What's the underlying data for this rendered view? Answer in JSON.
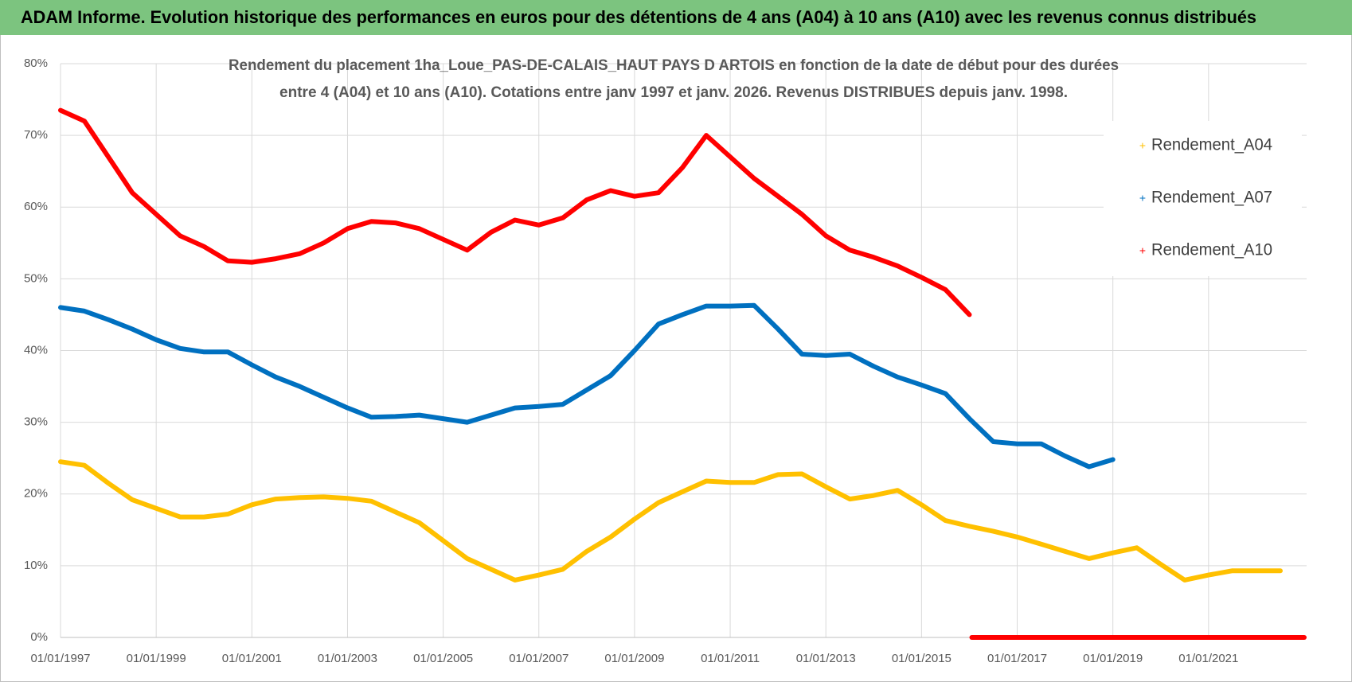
{
  "header": {
    "title": "ADAM Informe. Evolution historique des performances en euros pour des détentions de 4 ans (A04) à 10 ans (A10) avec les revenus connus distribués"
  },
  "chart_data": {
    "type": "line",
    "title": "Rendement du placement 1ha_Loue_PAS-DE-CALAIS_HAUT PAYS D ARTOIS en fonction de la date de début pour des durées",
    "subtitle": "entre 4 (A04) et 10 ans (A10). Cotations entre janv 1997 et janv. 2026. Revenus DISTRIBUES depuis janv. 1998.",
    "xlim": [
      1997,
      2023.05
    ],
    "xticks": [
      {
        "value": 1997,
        "label": "01/01/1997"
      },
      {
        "value": 1999,
        "label": "01/01/1999"
      },
      {
        "value": 2001,
        "label": "01/01/2001"
      },
      {
        "value": 2003,
        "label": "01/01/2003"
      },
      {
        "value": 2005,
        "label": "01/01/2005"
      },
      {
        "value": 2007,
        "label": "01/01/2007"
      },
      {
        "value": 2009,
        "label": "01/01/2009"
      },
      {
        "value": 2011,
        "label": "01/01/2011"
      },
      {
        "value": 2013,
        "label": "01/01/2013"
      },
      {
        "value": 2015,
        "label": "01/01/2015"
      },
      {
        "value": 2017,
        "label": "01/01/2017"
      },
      {
        "value": 2019,
        "label": "01/01/2019"
      },
      {
        "value": 2021,
        "label": "01/01/2021"
      }
    ],
    "ylim": [
      0,
      80
    ],
    "yticks": [
      {
        "value": 0,
        "label": "0%"
      },
      {
        "value": 10,
        "label": "10%"
      },
      {
        "value": 20,
        "label": "20%"
      },
      {
        "value": 30,
        "label": "30%"
      },
      {
        "value": 40,
        "label": "40%"
      },
      {
        "value": 50,
        "label": "50%"
      },
      {
        "value": 60,
        "label": "60%"
      },
      {
        "value": 70,
        "label": "70%"
      },
      {
        "value": 80,
        "label": "80%"
      }
    ],
    "grid": true,
    "legend": "right",
    "series": [
      {
        "name": "Rendement_A04",
        "color": "#ffc000",
        "x": [
          1997,
          1997.5,
          1998,
          1998.5,
          1999,
          1999.5,
          2000,
          2000.5,
          2001,
          2001.5,
          2002,
          2002.5,
          2003,
          2003.5,
          2004,
          2004.5,
          2005,
          2005.5,
          2006,
          2006.5,
          2007,
          2007.5,
          2008,
          2008.5,
          2009,
          2009.5,
          2010,
          2010.5,
          2011,
          2011.5,
          2012,
          2012.5,
          2013,
          2013.5,
          2014,
          2014.5,
          2015,
          2015.5,
          2016,
          2016.5,
          2017,
          2017.5,
          2018,
          2018.5,
          2019,
          2019.5,
          2020,
          2020.5,
          2021,
          2021.5,
          2022,
          2022.5
        ],
        "values": [
          24.5,
          24,
          21.5,
          19.2,
          18,
          16.8,
          16.8,
          17.2,
          18.5,
          19.3,
          19.5,
          19.6,
          19.4,
          19,
          17.5,
          16,
          13.5,
          11,
          9.5,
          8,
          8.7,
          9.5,
          12,
          14,
          16.5,
          18.8,
          20.3,
          21.8,
          21.6,
          21.6,
          22.7,
          22.8,
          21,
          19.3,
          19.8,
          20.5,
          18.5,
          16.3,
          15.5,
          14.8,
          14,
          13,
          12,
          11,
          11.8,
          12.5,
          10.2,
          8,
          8.7,
          9.3,
          9.3,
          9.3
        ]
      },
      {
        "name": "Rendement_A07",
        "color": "#0070c0",
        "x": [
          1997,
          1997.5,
          1998,
          1998.5,
          1999,
          1999.5,
          2000,
          2000.5,
          2001,
          2001.5,
          2002,
          2002.5,
          2003,
          2003.5,
          2004,
          2004.5,
          2005,
          2005.5,
          2006,
          2006.5,
          2007,
          2007.5,
          2008,
          2008.5,
          2009,
          2009.5,
          2010,
          2010.5,
          2011,
          2011.5,
          2012,
          2012.5,
          2013,
          2013.5,
          2014,
          2014.5,
          2015,
          2015.5,
          2016,
          2016.5,
          2017,
          2017.5,
          2018,
          2018.5,
          2019
        ],
        "values": [
          46,
          45.5,
          44.3,
          43,
          41.5,
          40.3,
          39.8,
          39.8,
          38,
          36.3,
          35,
          33.5,
          32,
          30.7,
          30.8,
          31,
          30.5,
          30,
          31,
          32,
          32.2,
          32.5,
          34.5,
          36.5,
          40,
          43.7,
          45,
          46.2,
          46.2,
          46.3,
          43,
          39.5,
          39.3,
          39.5,
          37.8,
          36.3,
          35.2,
          34,
          30.5,
          27.3,
          27,
          27,
          25.3,
          23.8,
          24.8
        ]
      },
      {
        "name": "Rendement_A10",
        "color": "#ff0000",
        "x": [
          1997,
          1997.5,
          1998,
          1998.5,
          1999,
          1999.5,
          2000,
          2000.5,
          2001,
          2001.5,
          2002,
          2002.5,
          2003,
          2003.5,
          2004,
          2004.5,
          2005,
          2005.5,
          2006,
          2006.5,
          2007,
          2007.5,
          2008,
          2008.5,
          2009,
          2009.5,
          2010,
          2010.5,
          2011,
          2011.5,
          2012,
          2012.5,
          2013,
          2013.5,
          2014,
          2014.5,
          2015,
          2015.5,
          2016,
          2016.02,
          2016.05,
          2017,
          2018,
          2019,
          2020,
          2021,
          2022,
          2023
        ],
        "values": [
          73.5,
          72,
          67,
          62,
          59,
          56,
          54.5,
          52.5,
          52.3,
          52.8,
          53.5,
          55,
          57,
          58,
          57.8,
          57,
          55.5,
          54,
          56.5,
          58.2,
          57.5,
          58.5,
          61,
          62.3,
          61.5,
          62,
          65.5,
          70,
          67,
          64,
          61.5,
          59,
          56,
          54,
          53,
          51.8,
          50.2,
          48.5,
          45,
          null,
          0,
          0,
          0,
          0,
          0,
          0,
          0,
          0
        ]
      }
    ]
  }
}
